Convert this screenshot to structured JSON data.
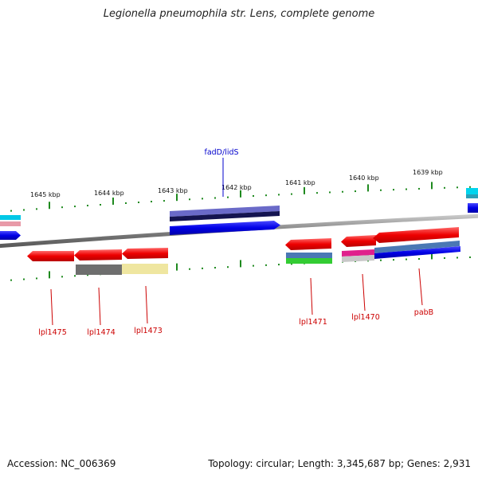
{
  "title": "Legionella pneumophila str. Lens, complete genome",
  "footer": {
    "accession": "Accession: NC_006369",
    "summary": "Topology: circular; Length: 3,345,687 bp; Genes: 2,931"
  },
  "colors": {
    "backbone": "#7f7f7f",
    "tick": "#1f8a1f",
    "gene_forward": "#0000e6",
    "gene_reverse": "#ee0000",
    "label_forward": "#0000cc",
    "label_reverse": "#cc0000"
  },
  "kbp_labels": [
    "1645 kbp",
    "1644 kbp",
    "1643 kbp",
    "1642 kbp",
    "1641 kbp",
    "1640 kbp",
    "1639 kbp"
  ],
  "gene_labels": [
    {
      "name": "fadD/lidS",
      "strand": "forward"
    },
    {
      "name": "lpl1475",
      "strand": "reverse"
    },
    {
      "name": "lpl1474",
      "strand": "reverse"
    },
    {
      "name": "lpl1473",
      "strand": "reverse"
    },
    {
      "name": "lpl1471",
      "strand": "reverse"
    },
    {
      "name": "lpl1470",
      "strand": "reverse"
    },
    {
      "name": "pabB",
      "strand": "reverse"
    }
  ]
}
